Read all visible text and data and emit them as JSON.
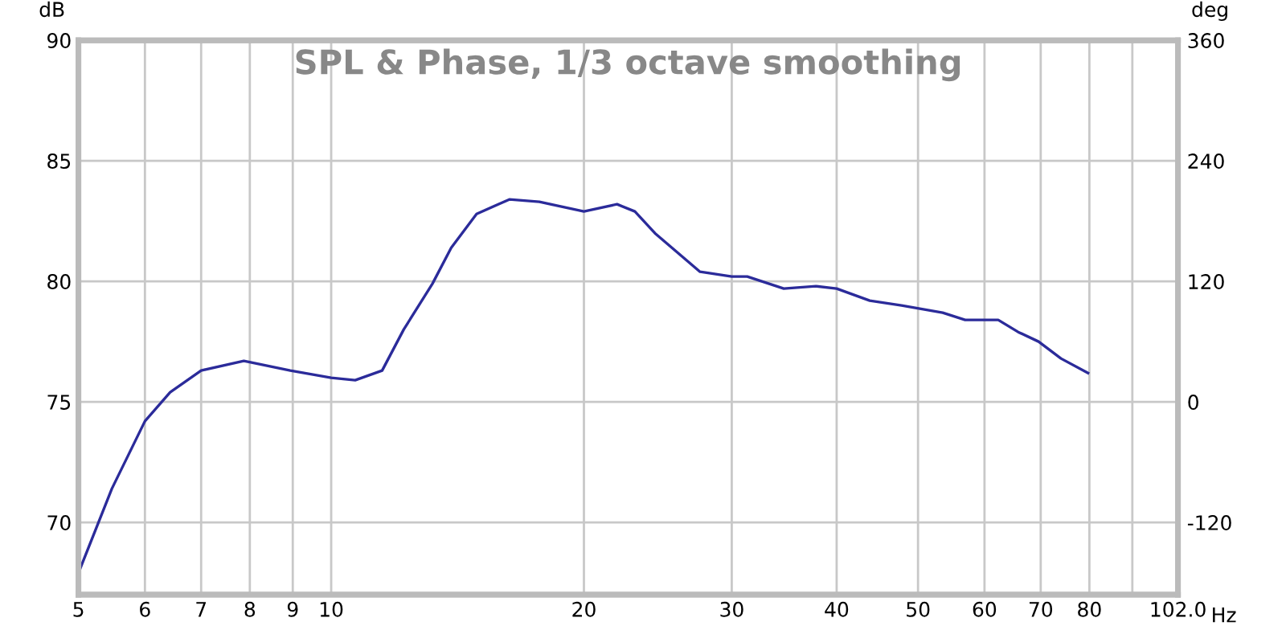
{
  "chart_data": {
    "type": "line",
    "title": "SPL & Phase, 1/3 octave smoothing",
    "ylabel": "dB",
    "y2label": "deg",
    "xlabel": "Hz",
    "log": "x",
    "grid": true,
    "marker": "none",
    "line_style": "solid",
    "xlim": [
      5,
      102
    ],
    "xticks": [
      5,
      6,
      7,
      8,
      9,
      10,
      20,
      30,
      40,
      50,
      60,
      70,
      80,
      {
        "value": 90,
        "label": null
      },
      {
        "value": 102,
        "label": "102.0"
      }
    ],
    "ylim": [
      67,
      90
    ],
    "yticks": [
      70,
      75,
      80,
      85,
      90
    ],
    "y2lim": [
      -192,
      360
    ],
    "y2ticks": [
      -120,
      0,
      120,
      240,
      360
    ],
    "series": [
      {
        "color": "#2b2b9a",
        "x": [
          5,
          5.48,
          6.0,
          6.43,
          7.0,
          7.87,
          8.94,
          10,
          10.68,
          11.5,
          12.2,
          13.2,
          13.9,
          14.9,
          16.3,
          17.7,
          20.0,
          21.9,
          23.0,
          24.3,
          27.5,
          30.0,
          31.3,
          34.6,
          37.8,
          40,
          43.8,
          47.8,
          53.5,
          56.9,
          62.3,
          65.8,
          69.6,
          74.0,
          79.7
        ],
        "values": [
          67.9,
          71.4,
          74.2,
          75.4,
          76.3,
          76.7,
          76.3,
          76.0,
          75.9,
          76.3,
          78.0,
          79.9,
          81.4,
          82.8,
          83.4,
          83.3,
          82.9,
          83.2,
          82.9,
          82.0,
          80.4,
          80.2,
          80.2,
          79.7,
          79.8,
          79.7,
          79.2,
          79.0,
          78.7,
          78.4,
          78.4,
          77.9,
          77.5,
          76.8,
          76.2
        ]
      }
    ]
  }
}
